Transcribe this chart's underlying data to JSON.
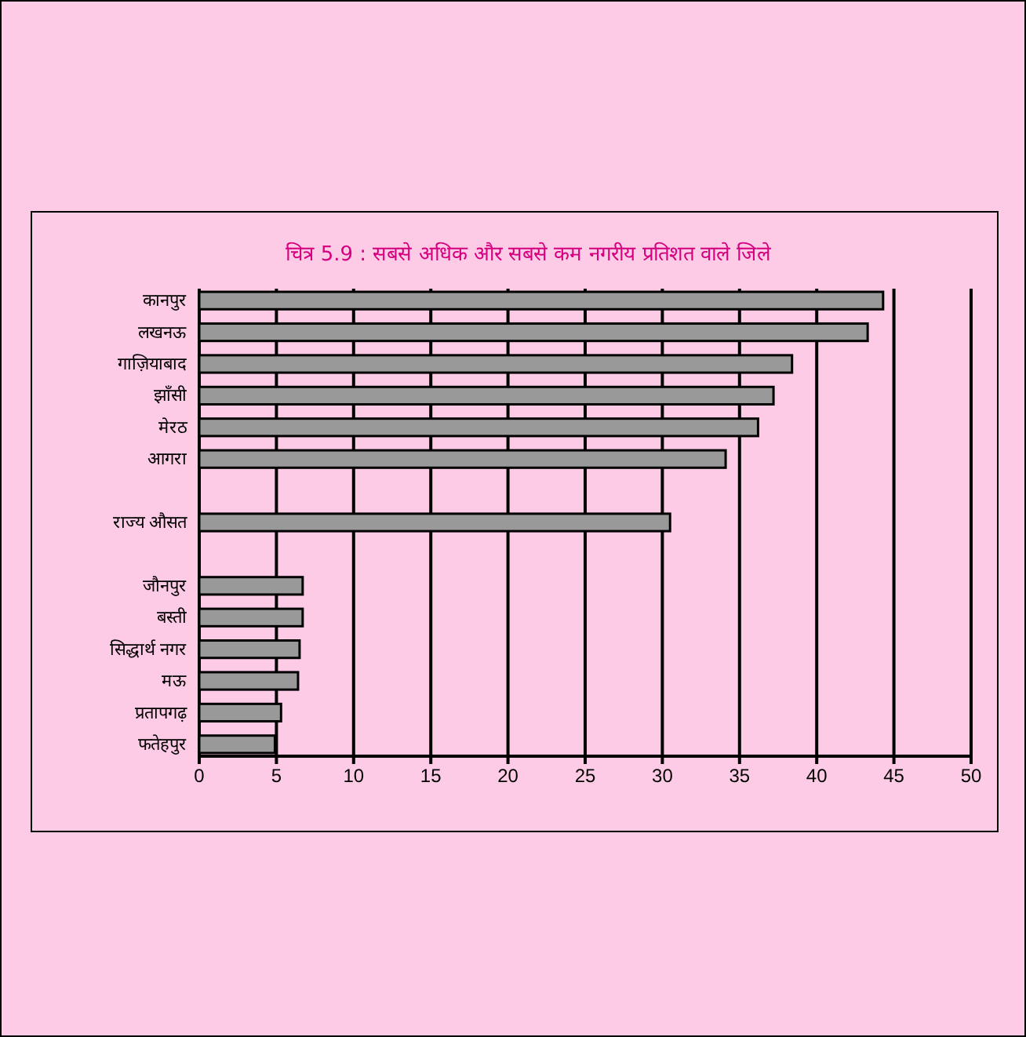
{
  "chart_data": {
    "type": "bar",
    "orientation": "horizontal",
    "title": "चित्र 5.9 : सबसे अधिक और सबसे कम नगरीय प्रतिशत वाले जिले",
    "categories": [
      "कानपुर",
      "लखनऊ",
      "गाज़ियाबाद",
      "झाँसी",
      "मेरठ",
      "आगरा",
      null,
      "राज्य औसत",
      null,
      "जौनपुर",
      "बस्ती",
      "सिद्धार्थ नगर",
      "मऊ",
      "प्रतापगढ़",
      "फतेहपुर"
    ],
    "values": [
      44.3,
      43.3,
      38.4,
      37.2,
      36.2,
      34.1,
      null,
      30.5,
      null,
      6.7,
      6.7,
      6.5,
      6.4,
      5.3,
      4.9
    ],
    "color": "#999999",
    "xlim": [
      0,
      50
    ],
    "xticks": [
      0,
      5,
      10,
      15,
      20,
      25,
      30,
      35,
      40,
      45,
      50
    ],
    "grid": "x"
  }
}
